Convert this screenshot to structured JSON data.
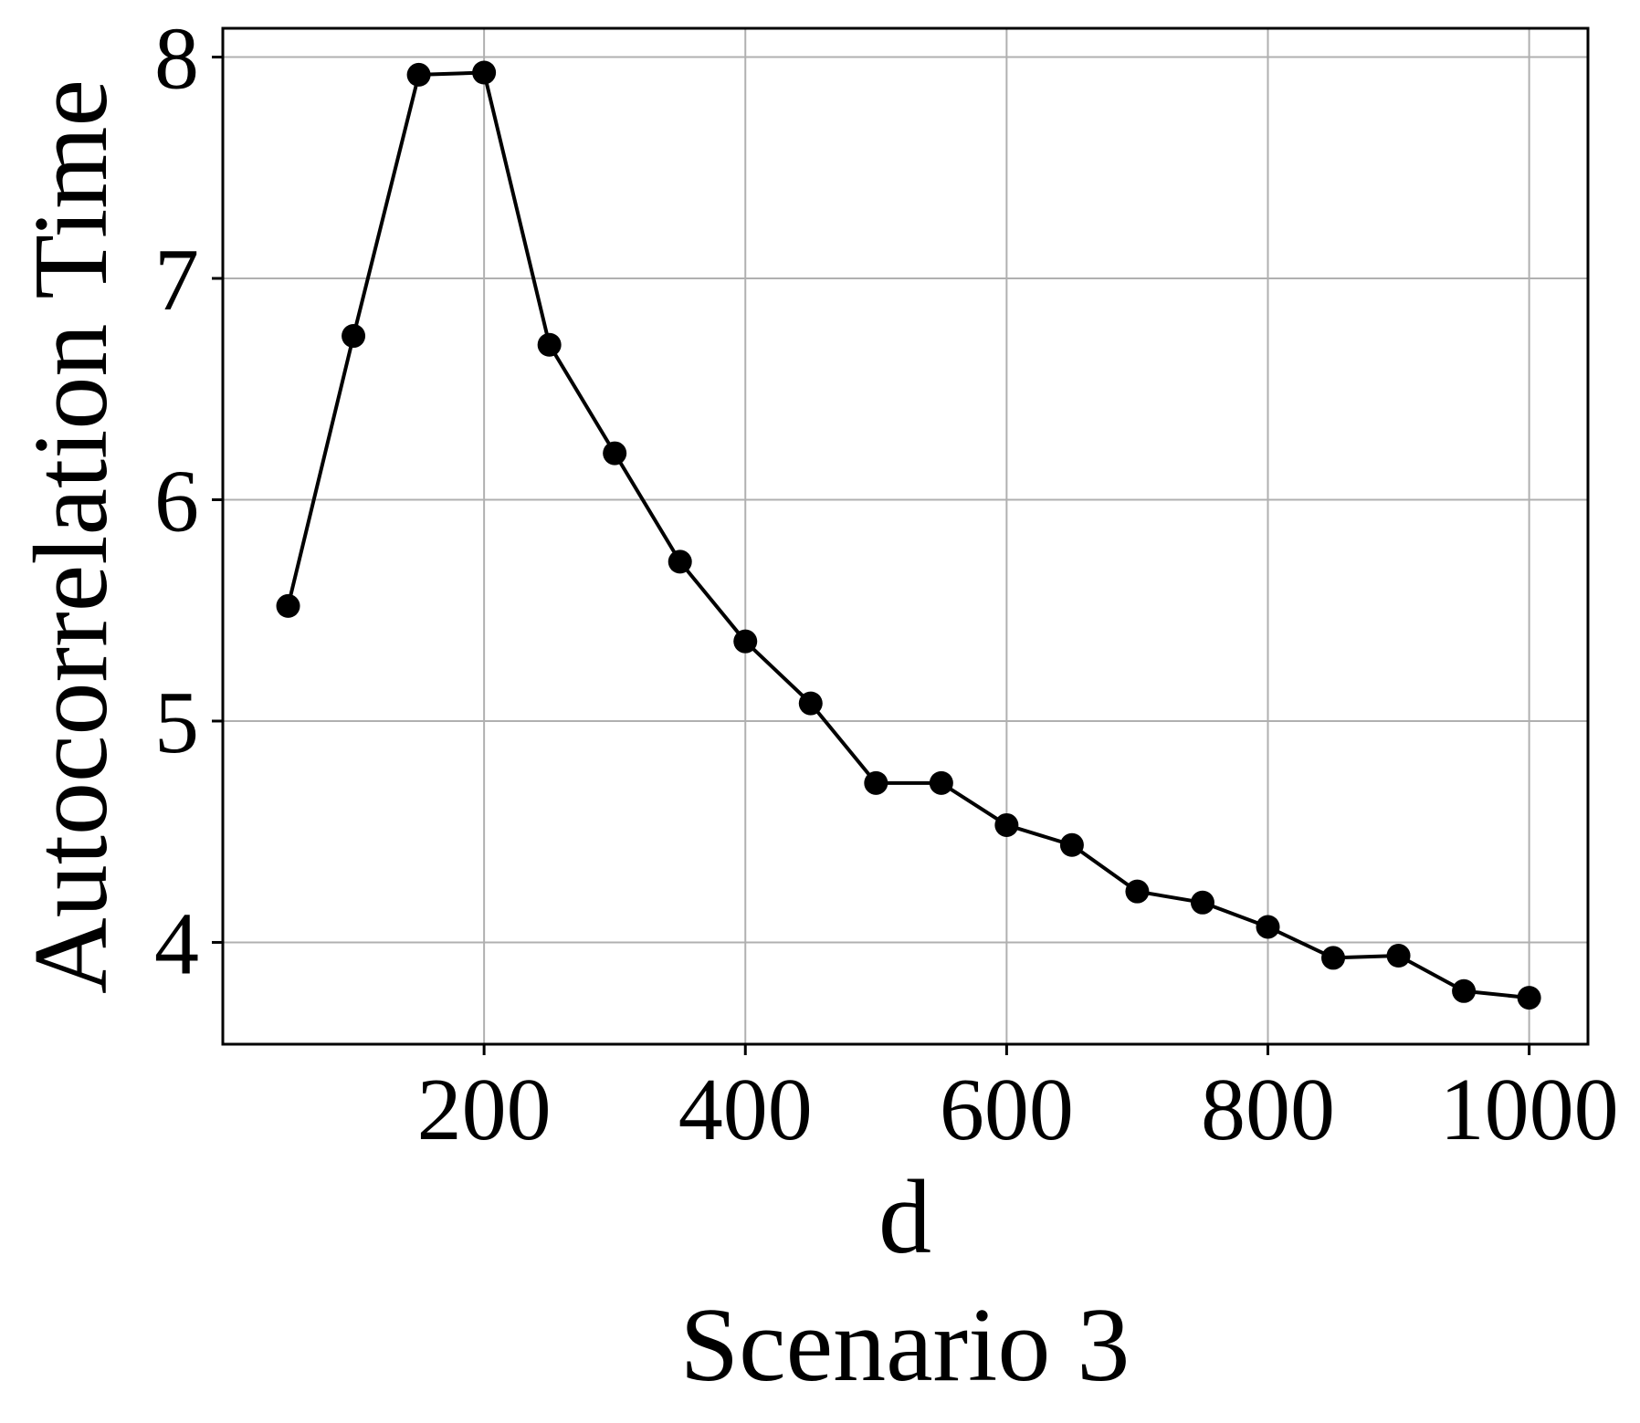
{
  "chart_data": {
    "type": "line",
    "title": "",
    "caption": "Scenario 3",
    "xlabel": "d",
    "ylabel": "Autocorrelation Time",
    "xlim": [
      0,
      1045
    ],
    "ylim": [
      3.54,
      8.13
    ],
    "xticks": [
      200,
      400,
      600,
      800,
      1000
    ],
    "yticks": [
      4,
      5,
      6,
      7,
      8
    ],
    "grid": true,
    "series": [
      {
        "x": [
          50,
          100,
          150,
          200,
          250,
          300,
          350,
          400,
          450,
          500,
          550,
          600,
          650,
          700,
          750,
          800,
          850,
          900,
          950,
          1000
        ],
        "y": [
          5.52,
          6.74,
          7.92,
          7.93,
          6.7,
          6.21,
          5.72,
          5.36,
          5.08,
          4.72,
          4.72,
          4.53,
          4.44,
          4.23,
          4.18,
          4.07,
          3.93,
          3.94,
          3.78,
          3.75
        ],
        "color": "#000000",
        "marker": "circle"
      }
    ],
    "colors": {
      "line": "#000000",
      "grid": "#b0b0b0",
      "axes": "#000000"
    }
  }
}
